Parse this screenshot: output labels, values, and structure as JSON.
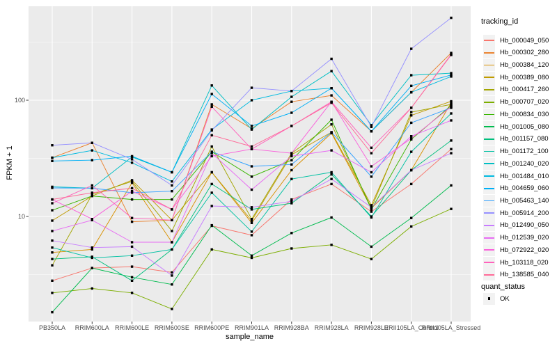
{
  "chart_data": {
    "type": "line",
    "title": "",
    "xlabel": "sample_name",
    "ylabel": "FPKM + 1",
    "y_scale": "log10",
    "ylim": [
      1.25,
      645
    ],
    "grid": "on",
    "legend_position": "right",
    "panel_bg": "#EBEBEB",
    "grid_color": "#FFFFFF",
    "tick_color": "#333333",
    "tick_label_color": "#4D4D4D",
    "point_color": "#000000",
    "y_major_ticks": [
      {
        "label": "100",
        "value": 100
      },
      {
        "label": "10",
        "value": 10
      }
    ],
    "y_minor_gridlines": [
      3.162,
      31.62,
      316.2
    ],
    "categories": [
      "PB350LA",
      "RRIM600LA",
      "RRIM600LE",
      "RRIM600SE",
      "RRIM600PE",
      "RRIM901LA",
      "RRIM928BA",
      "RRIM928LA",
      "RRIM928LE",
      "RRII105LA_Control",
      "RRII105LA_Stressed"
    ],
    "series": [
      {
        "name": "Hb_000049_050",
        "color": "#F8766D",
        "values": [
          2.8,
          3.6,
          3.7,
          3.3,
          8.3,
          6.9,
          14,
          19,
          11,
          19,
          38
        ]
      },
      {
        "name": "Hb_000302_280",
        "color": "#EA8331",
        "values": [
          32,
          43,
          9.0,
          9.3,
          92,
          57,
          97,
          110,
          54,
          117,
          255
        ]
      },
      {
        "name": "Hb_000384_120",
        "color": "#D89000",
        "values": [
          4.9,
          5.2,
          19.5,
          6.0,
          24,
          8.8,
          25,
          52,
          11.8,
          25,
          95
        ]
      },
      {
        "name": "Hb_000389_080",
        "color": "#C09B00",
        "values": [
          9.2,
          15,
          20.5,
          9.3,
          24,
          9.2,
          34,
          53,
          12.5,
          74,
          98
        ]
      },
      {
        "name": "Hb_000417_260",
        "color": "#A3A500",
        "values": [
          3.8,
          15.5,
          20,
          7.5,
          40,
          9.5,
          35,
          62,
          11.8,
          79,
          92
        ]
      },
      {
        "name": "Hb_000707_020",
        "color": "#7CAE00",
        "values": [
          2.2,
          2.4,
          2.2,
          1.6,
          5.2,
          4.4,
          5.3,
          5.7,
          4.3,
          8.2,
          11.6
        ]
      },
      {
        "name": "Hb_000834_030",
        "color": "#39B600",
        "values": [
          11.3,
          15,
          14,
          14,
          36,
          22,
          30.5,
          68,
          11.5,
          46,
          90
        ]
      },
      {
        "name": "Hb_001005_080",
        "color": "#00BB4E",
        "values": [
          1.5,
          3.6,
          3.0,
          2.6,
          8.4,
          4.6,
          7.2,
          9.8,
          5.5,
          9.7,
          18.5
        ]
      },
      {
        "name": "Hb_001157_080",
        "color": "#00BF7D",
        "values": [
          4.3,
          4.5,
          2.8,
          5.2,
          19,
          11.5,
          13,
          23,
          10,
          25,
          45
        ]
      },
      {
        "name": "Hb_001172_100",
        "color": "#00C1A3",
        "values": [
          5.4,
          4.4,
          4.6,
          5.2,
          16,
          7.4,
          21,
          24,
          9.8,
          36,
          77
        ]
      },
      {
        "name": "Hb_001240_020",
        "color": "#00BFC4",
        "values": [
          18,
          17.5,
          32.5,
          24,
          134,
          56,
          107,
          178,
          61,
          164,
          171
        ]
      },
      {
        "name": "Hb_001484_010",
        "color": "#00BAE0",
        "values": [
          32,
          37,
          29,
          20,
          56,
          100,
          120,
          127,
          54,
          117,
          160
        ]
      },
      {
        "name": "Hb_004659_060",
        "color": "#00B0F6",
        "values": [
          30,
          30.5,
          33,
          24,
          113,
          60,
          78,
          127,
          54,
          133,
          165
        ]
      },
      {
        "name": "Hb_005463_140",
        "color": "#35A2FF",
        "values": [
          17.6,
          17.5,
          16,
          16.5,
          36,
          27,
          28,
          53,
          22,
          64,
          86
        ]
      },
      {
        "name": "Hb_005914_200",
        "color": "#9590FF",
        "values": [
          41,
          43,
          31,
          18.5,
          55,
          128,
          120,
          227,
          59,
          277,
          512
        ]
      },
      {
        "name": "Hb_012490_050",
        "color": "#C77CFF",
        "values": [
          6.2,
          5.4,
          5.5,
          3.1,
          12.3,
          12,
          13.5,
          21,
          12,
          25,
          35
        ]
      },
      {
        "name": "Hb_012539_020",
        "color": "#E76BF3",
        "values": [
          7.5,
          9.3,
          6.0,
          6.0,
          35,
          17,
          33,
          37,
          24,
          49,
          67
        ]
      },
      {
        "name": "Hb_072922_020",
        "color": "#FA62DB",
        "values": [
          14,
          9.5,
          16.5,
          11.5,
          33,
          38,
          35,
          97,
          27,
          47,
          88
        ]
      },
      {
        "name": "Hb_103118_020",
        "color": "#FF62BC",
        "values": [
          13,
          18.5,
          9.7,
          9.3,
          88,
          38,
          60,
          97,
          39,
          86,
          248
        ]
      },
      {
        "name": "Hb_138585_040",
        "color": "#FF6A98",
        "values": [
          14,
          16,
          17.5,
          11.5,
          50,
          40,
          60,
          95,
          35,
          86,
          245
        ]
      }
    ],
    "legend": {
      "tracking_title": "tracking_id",
      "quant_title": "quant_status",
      "quant_items": [
        {
          "label": "OK",
          "marker": "black-square"
        }
      ]
    }
  }
}
